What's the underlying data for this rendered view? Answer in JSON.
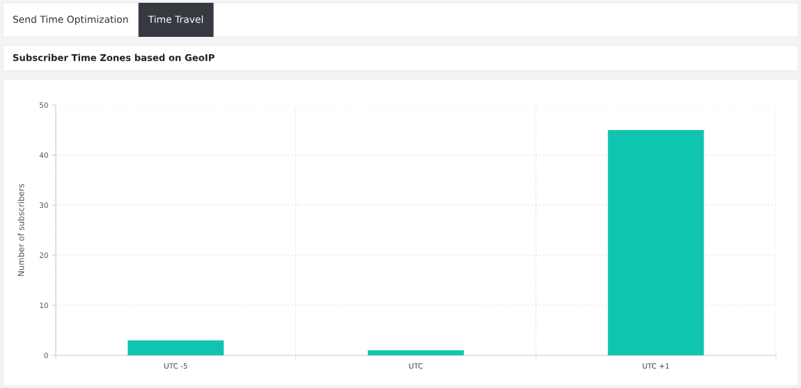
{
  "chart_data": {
    "type": "bar",
    "title": "Subscriber Time Zones based on GeoIP",
    "ylabel": "Number of subscribers",
    "annotations": [
      "Send Time Optimization",
      "Time Travel"
    ],
    "categories": [
      "UTC -5",
      "UTC",
      "UTC +1"
    ],
    "values": [
      3,
      1,
      45
    ],
    "color": "#10c4b2",
    "ylim": [
      0,
      50
    ],
    "yticks": [
      0,
      10,
      20,
      30,
      40,
      50
    ],
    "grid": true
  }
}
